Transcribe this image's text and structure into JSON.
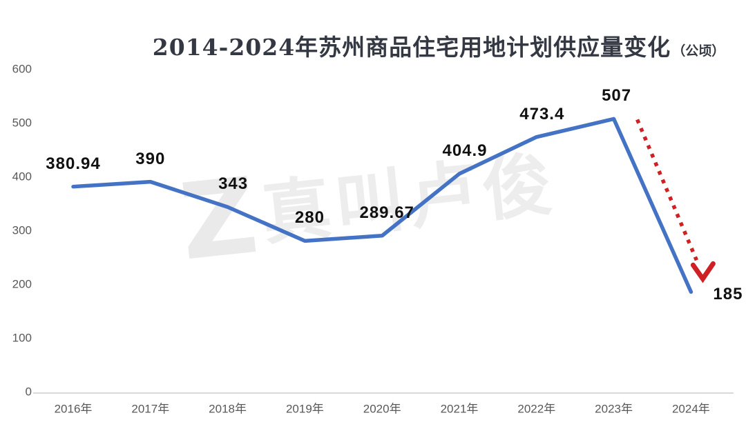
{
  "title": {
    "text": "2014-2024年苏州商品住宅用地计划供应量变化",
    "unit": "（公顷）"
  },
  "watermark": {
    "logo": "Z",
    "text": "真叫卢俊"
  },
  "chart_data": {
    "type": "line",
    "title": "2014-2024年苏州商品住宅用地计划供应量变化（公顷）",
    "categories": [
      "2016年",
      "2017年",
      "2018年",
      "2019年",
      "2020年",
      "2021年",
      "2022年",
      "2023年",
      "2024年"
    ],
    "values": [
      380.94,
      390,
      343,
      280,
      289.67,
      404.9,
      473.4,
      507,
      185
    ],
    "labels": [
      "380.94",
      "390",
      "343",
      "280",
      "289.67",
      "404.9",
      "473.4",
      "507",
      "185"
    ],
    "xlabel": "",
    "ylabel": "",
    "ylim": [
      0,
      600
    ],
    "yticks": [
      0,
      100,
      200,
      300,
      400,
      500,
      600
    ],
    "grid": false,
    "legend": false,
    "line_color": "#4472C4",
    "label_color": "#111111",
    "tick_color": "#595959",
    "axis_line_color": "#D9D9D9",
    "annotation_arrow": {
      "style": "dotted",
      "color": "#CF2024",
      "from": {
        "category": "2023年",
        "value": 507
      },
      "to": {
        "category": "2024年",
        "value": 185
      }
    }
  }
}
